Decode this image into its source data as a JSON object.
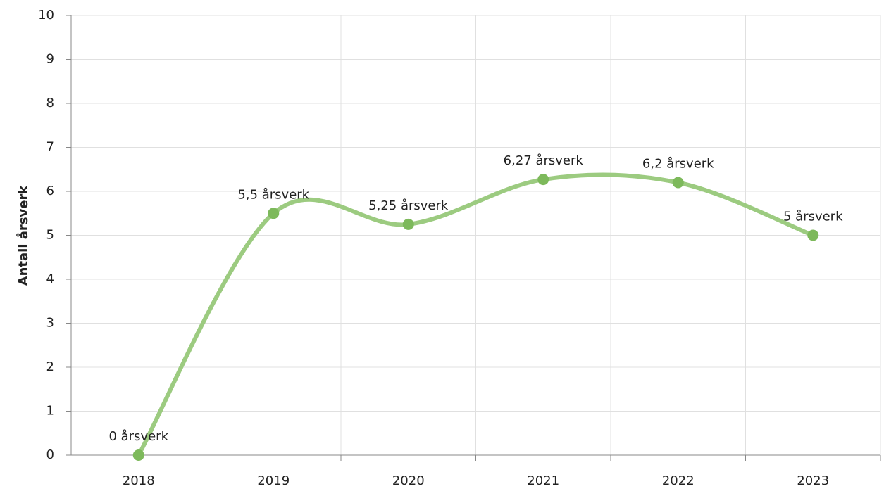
{
  "chart_data": {
    "type": "line",
    "y_label": "Antall årsverk",
    "categories": [
      "2018",
      "2019",
      "2020",
      "2021",
      "2022",
      "2023"
    ],
    "series": [
      {
        "name": "Antall årsverk",
        "color": "#7db95b",
        "line_color": "#9ccb80",
        "values": [
          0,
          5.5,
          5.25,
          6.27,
          6.2,
          5
        ],
        "value_labels": [
          "0 årsverk",
          "5,5 årsverk",
          "5,25 årsverk",
          "6,27 årsverk",
          "6,2 årsverk",
          "5 årsverk"
        ]
      }
    ],
    "ylim": [
      0,
      10
    ],
    "yticks": [
      0,
      1,
      2,
      3,
      4,
      5,
      6,
      7,
      8,
      9,
      10
    ],
    "grid": true,
    "smooth": true
  }
}
